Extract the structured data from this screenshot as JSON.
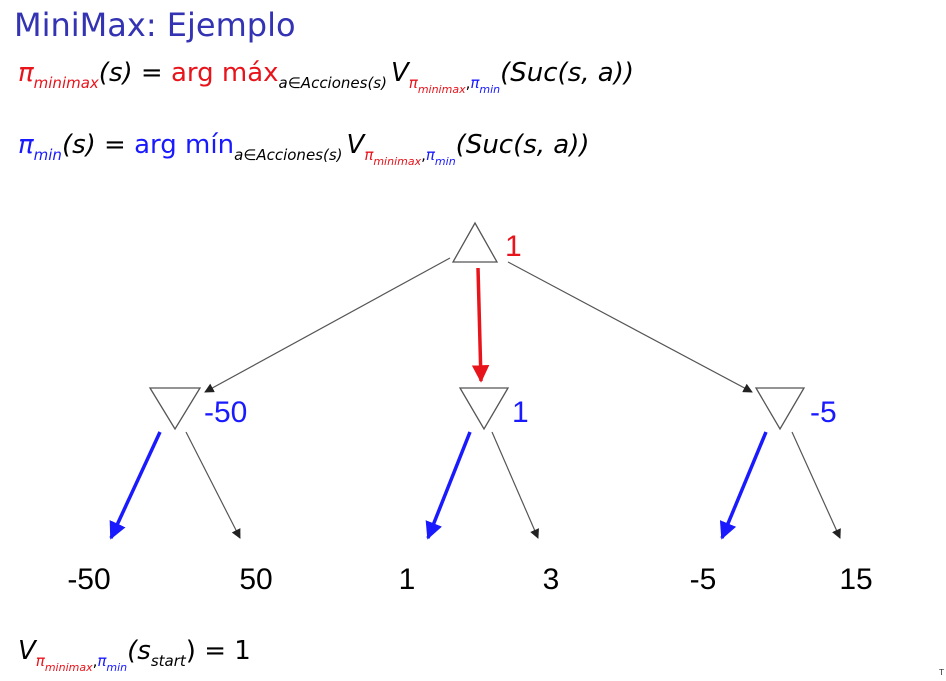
{
  "slide": {
    "title": "MiniMax: Ejemplo",
    "corner_text": "T"
  },
  "formula_max": {
    "pi": "π",
    "pi_sub": "minimax",
    "arg": "(s) = ",
    "op": "arg máx",
    "op_sub": "a∈Acciones(s)",
    "v": "V",
    "v_sub_a": "π",
    "v_sub_a_sub": "minimax",
    "v_sub_comma": ",",
    "v_sub_b": "π",
    "v_sub_b_sub": "min",
    "tail": "(Suc(s, a))"
  },
  "formula_min": {
    "pi": "π",
    "pi_sub": "min",
    "arg": "(s) = ",
    "op": "arg mín",
    "op_sub": "a∈Acciones(s)",
    "v": "V",
    "v_sub_a": "π",
    "v_sub_a_sub": "minimax",
    "v_sub_comma": ",",
    "v_sub_b": "π",
    "v_sub_b_sub": "min",
    "tail": "(Suc(s, a))"
  },
  "formula_value": {
    "v": "V",
    "v_sub_a": "π",
    "v_sub_a_sub": "minimax",
    "v_sub_comma": ",",
    "v_sub_b": "π",
    "v_sub_b_sub": "min",
    "open": "(s",
    "s_sub": "start",
    "tail": ") = 1"
  },
  "tree": {
    "root": {
      "shape": "max-triangle",
      "value": "1"
    },
    "min_nodes": [
      {
        "shape": "min-triangle",
        "value": "-50"
      },
      {
        "shape": "min-triangle",
        "value": "1"
      },
      {
        "shape": "min-triangle",
        "value": "-5"
      }
    ],
    "leaves": [
      "-50",
      "50",
      "1",
      "3",
      "-5",
      "15"
    ],
    "chosen_max_child": 1,
    "chosen_min_child": [
      0,
      0,
      0
    ]
  },
  "colors": {
    "title": "#3333b3",
    "max_policy": "#e8141c",
    "min_policy": "#1a1aff",
    "edge": "#555555"
  }
}
